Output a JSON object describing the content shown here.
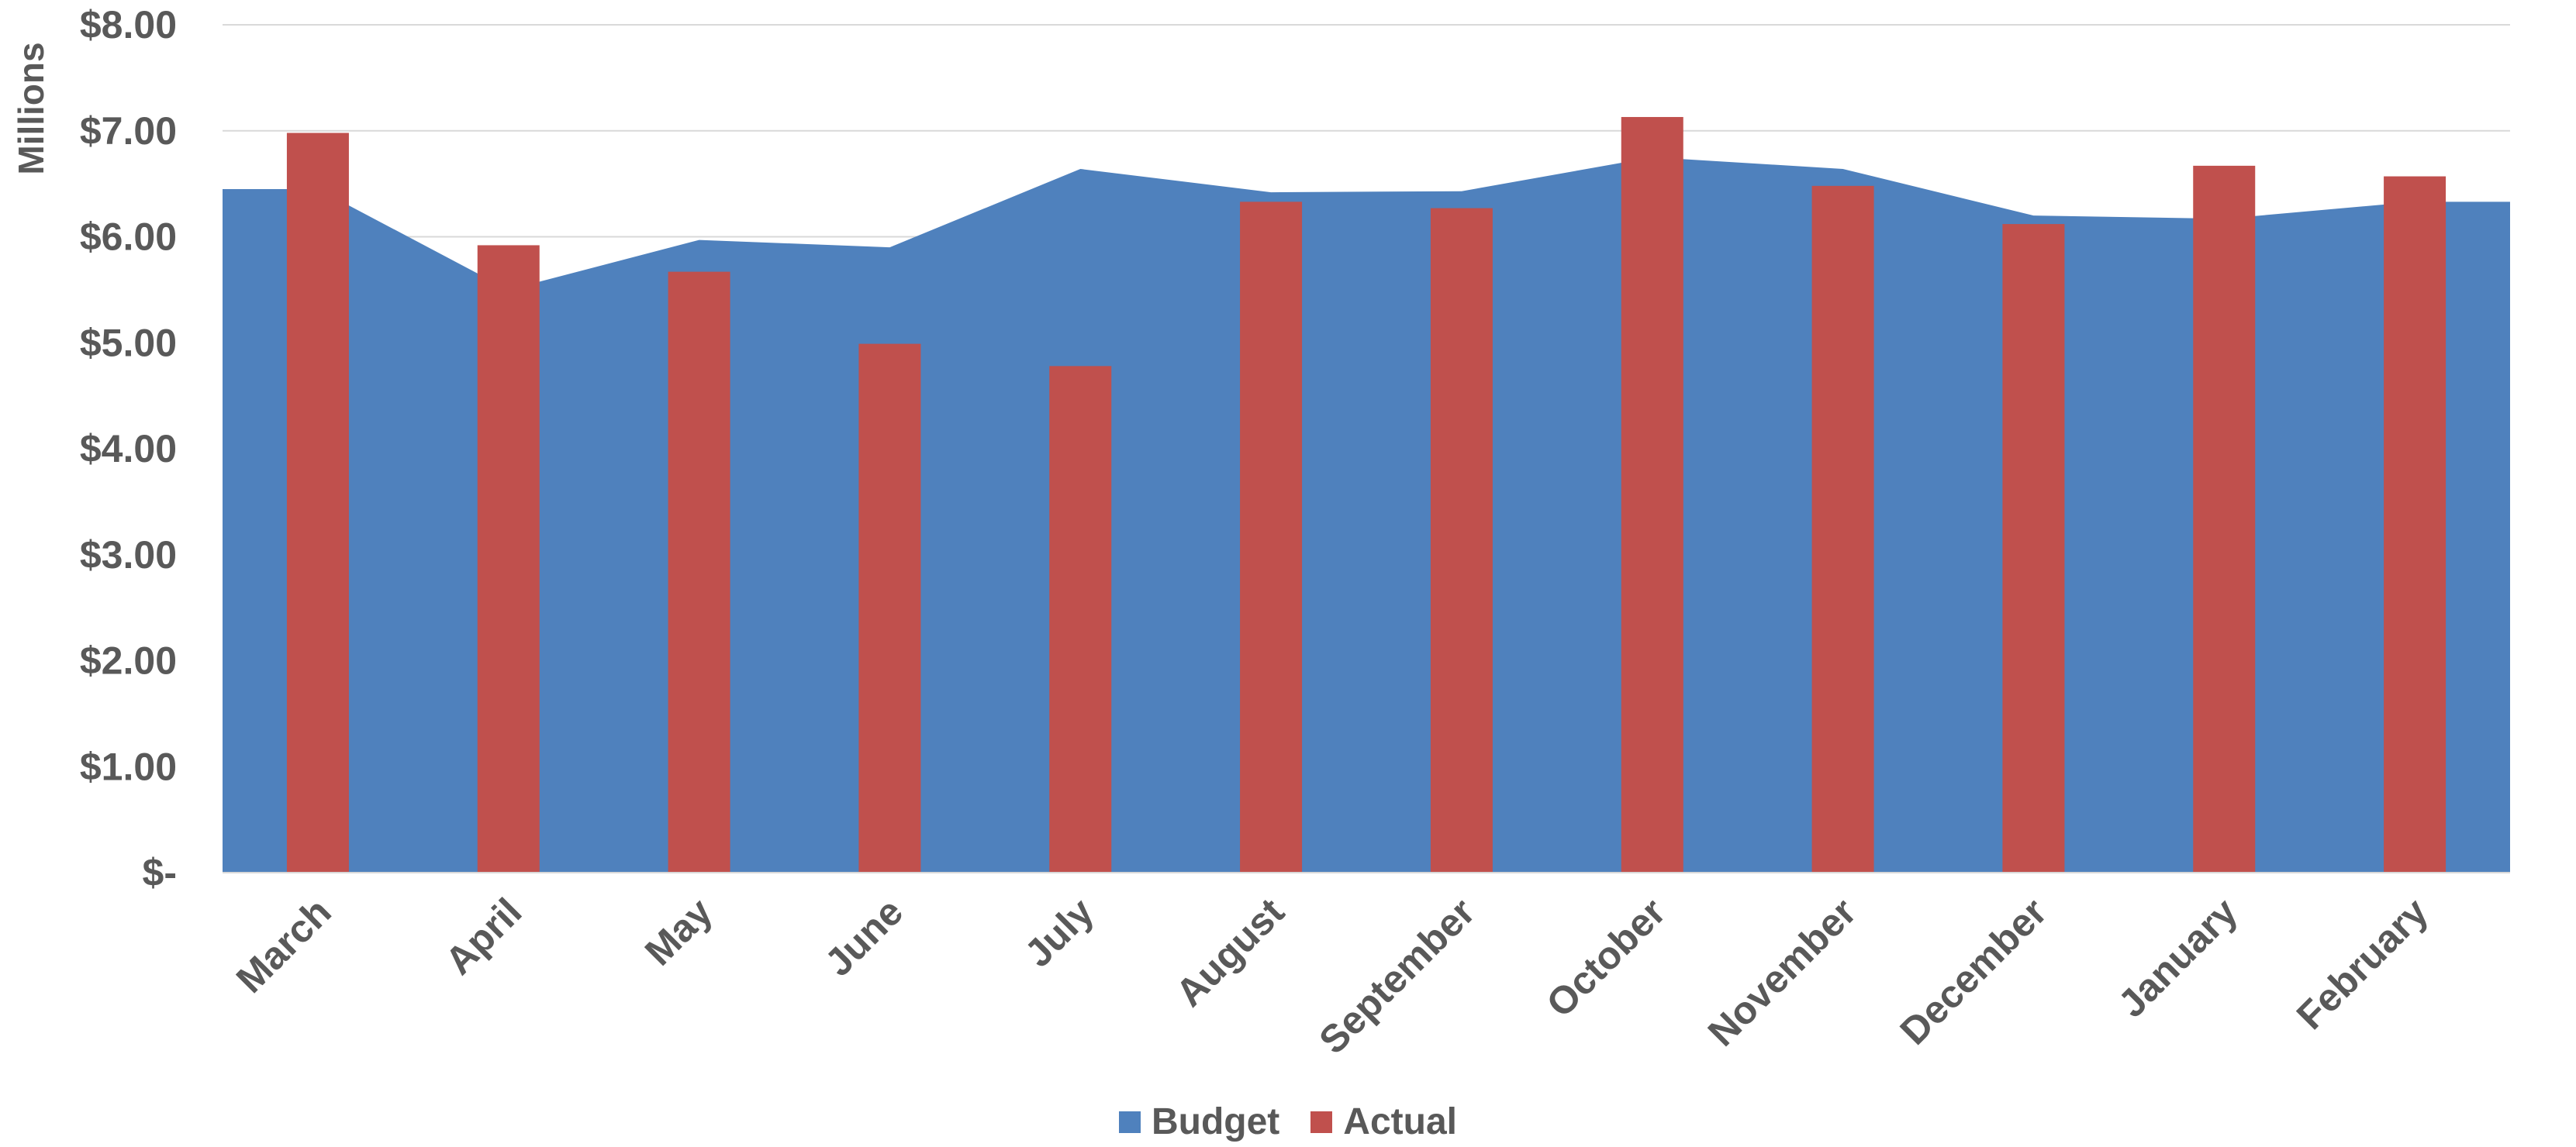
{
  "chart_data": {
    "type": "area+bar",
    "ylabel": "Millions",
    "ylim": [
      0,
      8
    ],
    "ytick_labels": [
      "$-",
      "$1.00",
      "$2.00",
      "$3.00",
      "$4.00",
      "$5.00",
      "$6.00",
      "$7.00",
      "$8.00"
    ],
    "categories": [
      "March",
      "April",
      "May",
      "June",
      "July",
      "August",
      "September",
      "October",
      "November",
      "December",
      "January",
      "February"
    ],
    "series": [
      {
        "name": "Budget",
        "type": "area",
        "color": "#4f81bd",
        "values": [
          6.45,
          5.5,
          5.97,
          5.9,
          6.64,
          6.42,
          6.43,
          6.75,
          6.64,
          6.2,
          6.17,
          6.33
        ]
      },
      {
        "name": "Actual",
        "type": "bar",
        "color": "#c0504d",
        "values": [
          6.98,
          5.92,
          5.67,
          4.99,
          4.78,
          6.33,
          6.27,
          7.13,
          6.48,
          6.12,
          6.67,
          6.57
        ]
      }
    ],
    "grid": true,
    "legend_position": "bottom"
  }
}
